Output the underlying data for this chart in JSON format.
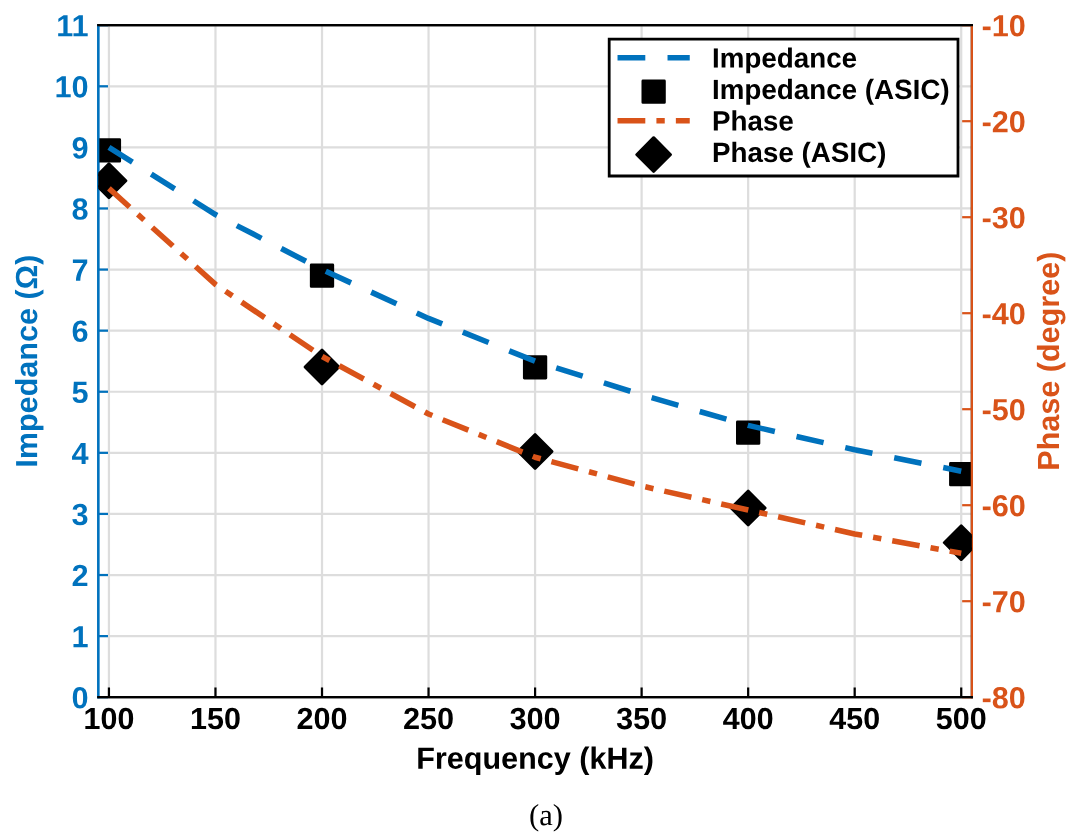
{
  "chart_data": {
    "type": "line",
    "xlabel": "Frequency (kHz)",
    "ylabel": "Impedance (Ω)",
    "y2label": "Phase (degree)",
    "xlim": [
      95,
      505
    ],
    "xticks": [
      100,
      150,
      200,
      250,
      300,
      350,
      400,
      450,
      500
    ],
    "ylim": [
      0,
      11
    ],
    "yticks": [
      0,
      1,
      2,
      3,
      4,
      5,
      6,
      7,
      8,
      9,
      10,
      11
    ],
    "y2lim": [
      -80,
      -10
    ],
    "y2ticks": [
      -80,
      -70,
      -60,
      -50,
      -40,
      -30,
      -20,
      -10
    ],
    "grid": true,
    "legend": "top right",
    "annotations": [
      "(a)"
    ],
    "series": [
      {
        "name": "Impedance",
        "color": "#0072bd",
        "line_style": "dashed",
        "marker": "none",
        "x": [
          100,
          150,
          200,
          250,
          300,
          350,
          400,
          450,
          500
        ],
        "values": [
          9.0,
          7.9,
          7.0,
          6.2,
          5.5,
          4.95,
          4.45,
          4.05,
          3.7
        ]
      },
      {
        "name": "Impedance (ASIC)",
        "type": "scatter",
        "color": "#000000",
        "marker": "square",
        "x": [
          100,
          200,
          300,
          400,
          500
        ],
        "values": [
          8.95,
          6.9,
          5.4,
          4.33,
          3.65
        ]
      },
      {
        "name": "Phase",
        "axis": "y2",
        "color": "#d95319",
        "line_style": "dashdot",
        "marker": "none",
        "x": [
          100,
          150,
          200,
          250,
          300,
          350,
          400,
          450,
          500
        ],
        "values": [
          -27,
          -37,
          -44.5,
          -50.5,
          -55,
          -58,
          -60.5,
          -63,
          -65
        ]
      },
      {
        "name": "Phase (ASIC)",
        "type": "scatter",
        "axis": "y2",
        "color": "#000000",
        "marker": "diamond",
        "x": [
          100,
          200,
          300,
          400,
          500
        ],
        "values": [
          -26.2,
          -45.6,
          -54.4,
          -60.3,
          -63.9
        ]
      }
    ]
  }
}
